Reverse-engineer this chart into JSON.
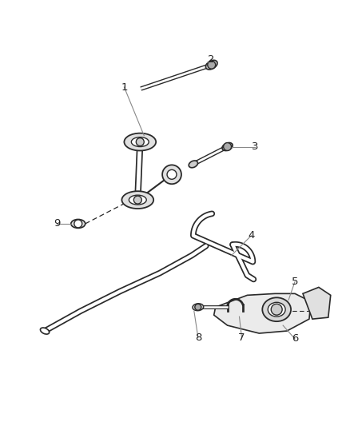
{
  "bg_color": "#ffffff",
  "line_color": "#2a2a2a",
  "label_line_color": "#888888",
  "fig_width": 4.38,
  "fig_height": 5.33,
  "dpi": 100
}
